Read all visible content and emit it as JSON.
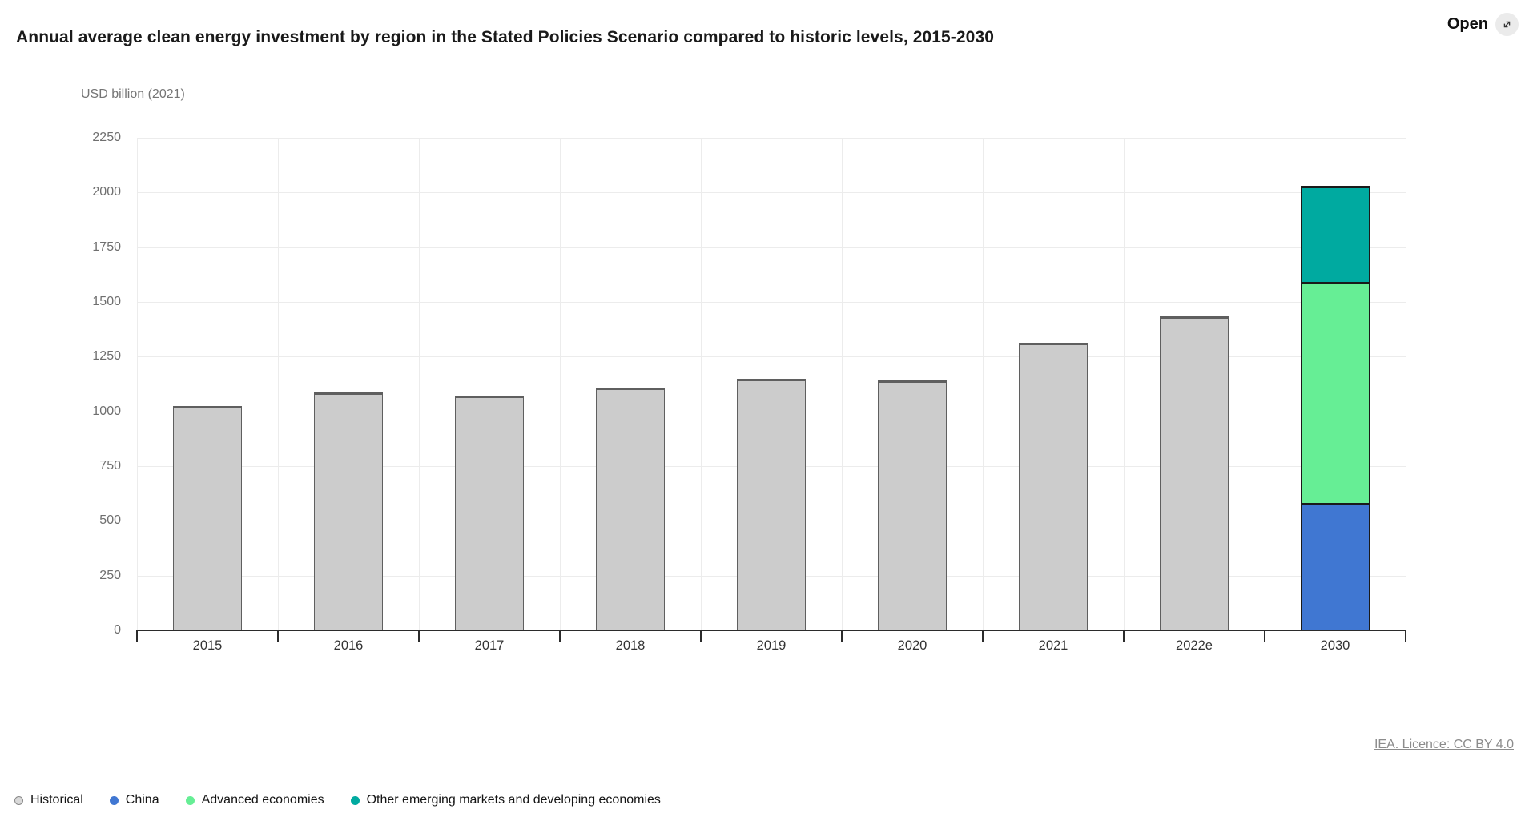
{
  "header": {
    "title": "Annual average clean energy investment by region in the Stated Policies Scenario compared to historic levels, 2015-2030",
    "open_label": "Open",
    "open_icon": "expand-diagonal-icon"
  },
  "chart_data": {
    "type": "bar",
    "stacked": true,
    "title": "Annual average clean energy investment by region in the Stated Policies Scenario compared to historic levels, 2015-2030",
    "unit_label": "USD billion (2021)",
    "xlabel": "",
    "ylabel": "USD billion (2021)",
    "categories": [
      "2015",
      "2016",
      "2017",
      "2018",
      "2019",
      "2020",
      "2021",
      "2022e",
      "2030"
    ],
    "series": [
      {
        "name": "Historical",
        "color": "#cccccc",
        "border_color": "#5f5f5f",
        "values": [
          1025,
          1085,
          1072,
          1108,
          1147,
          1140,
          1312,
          1435,
          null
        ]
      },
      {
        "name": "China",
        "color": "#4077d2",
        "border_color": "#1a1a1a",
        "values": [
          null,
          null,
          null,
          null,
          null,
          null,
          null,
          null,
          580
        ]
      },
      {
        "name": "Advanced economies",
        "color": "#66ee95",
        "border_color": "#1a1a1a",
        "values": [
          null,
          null,
          null,
          null,
          null,
          null,
          null,
          null,
          1010
        ]
      },
      {
        "name": "Other emerging markets and developing economies",
        "color": "#00aaa0",
        "border_color": "#1a1a1a",
        "values": [
          null,
          null,
          null,
          null,
          null,
          null,
          null,
          null,
          440
        ]
      }
    ],
    "ylim": [
      0,
      2250
    ],
    "ytick_interval": 250,
    "grid": true,
    "legend_position": "bottom",
    "legend_swatches": {
      "Historical": {
        "fill": "#d9d9d9",
        "border": "#8a8a8a"
      }
    }
  },
  "footer": {
    "licence": "IEA. Licence: CC BY 4.0"
  }
}
